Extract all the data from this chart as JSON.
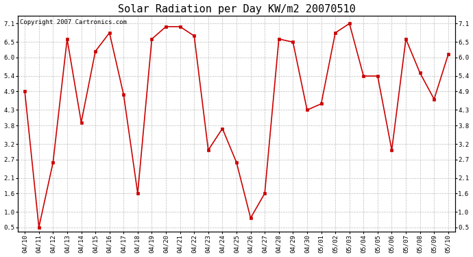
{
  "title": "Solar Radiation per Day KW/m2 20070510",
  "copyright_text": "Copyright 2007 Cartronics.com",
  "dates": [
    "04/10",
    "04/11",
    "04/12",
    "04/13",
    "04/14",
    "04/15",
    "04/16",
    "04/17",
    "04/18",
    "04/19",
    "04/20",
    "04/21",
    "04/22",
    "04/23",
    "04/24",
    "04/25",
    "04/26",
    "04/27",
    "04/28",
    "04/29",
    "04/30",
    "05/01",
    "05/02",
    "05/03",
    "05/04",
    "05/05",
    "05/06",
    "05/07",
    "05/08",
    "05/09",
    "05/10"
  ],
  "values": [
    4.9,
    0.5,
    2.6,
    6.6,
    3.9,
    6.2,
    6.8,
    4.8,
    1.6,
    6.6,
    7.0,
    7.0,
    6.7,
    3.0,
    3.7,
    2.6,
    0.8,
    1.6,
    6.6,
    6.5,
    4.3,
    4.5,
    6.8,
    7.1,
    5.4,
    5.4,
    3.0,
    6.6,
    5.5,
    4.65,
    6.1
  ],
  "line_color": "#cc0000",
  "marker_color": "#cc0000",
  "bg_color": "#ffffff",
  "plot_bg_color": "#ffffff",
  "grid_color": "#bbbbbb",
  "yticks": [
    0.5,
    1.0,
    1.6,
    2.1,
    2.7,
    3.2,
    3.8,
    4.3,
    4.9,
    5.4,
    6.0,
    6.5,
    7.1
  ],
  "ylim": [
    0.35,
    7.35
  ],
  "title_fontsize": 11,
  "copyright_fontsize": 6.5,
  "tick_fontsize": 6.5
}
